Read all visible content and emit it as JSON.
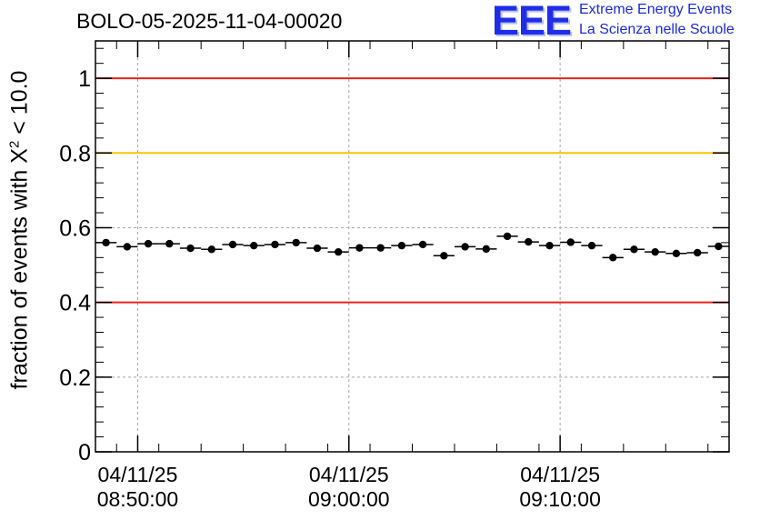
{
  "header": {
    "title": "BOLO-05-2025-11-04-00020",
    "logo_text": "EEE",
    "logo_line1": "Extreme Energy Events",
    "logo_line2": "La Scienza nelle Scuole"
  },
  "chart_data": {
    "type": "scatter",
    "title": "BOLO-05-2025-11-04-00020",
    "ylabel_prefix": "fraction of events with X",
    "ylabel_sup": "2",
    "ylabel_suffix": " < 10.0",
    "ylim": [
      0,
      1.1
    ],
    "xlim_minutes": [
      -1,
      29
    ],
    "y_ticks": [
      "0",
      "0.2",
      "0.4",
      "0.6",
      "0.8",
      "1"
    ],
    "x_ticks": [
      {
        "minute": 1,
        "date": "04/11/25",
        "time": "08:50:00"
      },
      {
        "minute": 11,
        "date": "04/11/25",
        "time": "09:00:00"
      },
      {
        "minute": 21,
        "date": "04/11/25",
        "time": "09:10:00"
      }
    ],
    "grid": true,
    "reference_lines": [
      {
        "y": 1.0,
        "color": "#e8231b"
      },
      {
        "y": 0.8,
        "color": "#ffc400"
      },
      {
        "y": 0.4,
        "color": "#e8231b"
      }
    ],
    "bin_width_minutes": 1,
    "x_start_minute": -1,
    "values": [
      0.56,
      0.549,
      0.557,
      0.557,
      0.545,
      0.542,
      0.555,
      0.552,
      0.555,
      0.56,
      0.545,
      0.535,
      0.546,
      0.546,
      0.552,
      0.555,
      0.525,
      0.549,
      0.543,
      0.577,
      0.562,
      0.552,
      0.561,
      0.552,
      0.52,
      0.542,
      0.535,
      0.531,
      0.533,
      0.55
    ],
    "errors": [
      0.009,
      0.009,
      0.009,
      0.009,
      0.009,
      0.009,
      0.009,
      0.009,
      0.009,
      0.009,
      0.009,
      0.009,
      0.009,
      0.009,
      0.009,
      0.009,
      0.009,
      0.009,
      0.009,
      0.009,
      0.009,
      0.009,
      0.009,
      0.009,
      0.009,
      0.009,
      0.009,
      0.009,
      0.009,
      0.009
    ]
  }
}
